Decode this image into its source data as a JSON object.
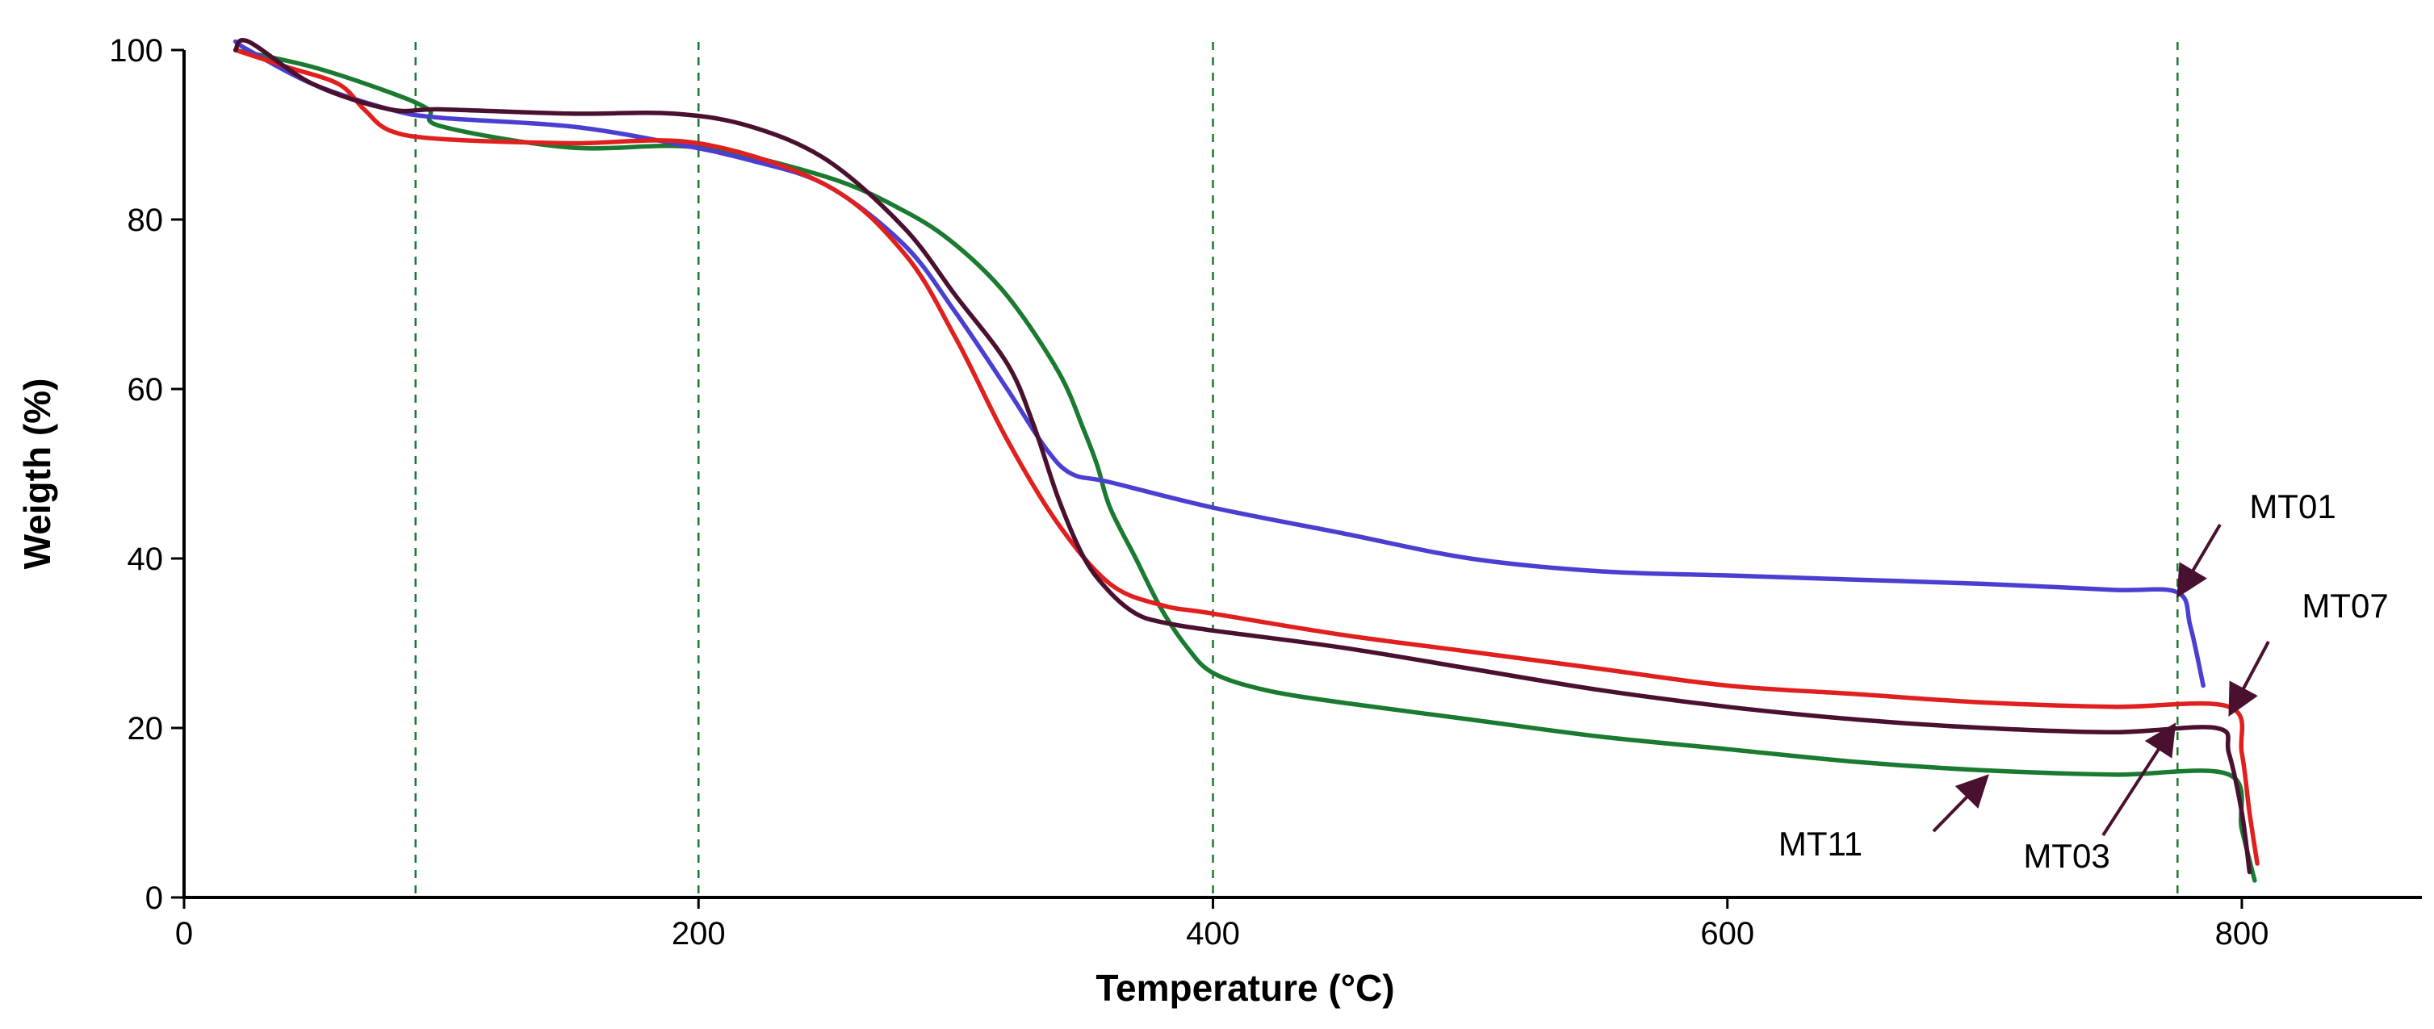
{
  "chart_data": {
    "type": "line",
    "title": "",
    "xlabel": "Temperature (°C)",
    "ylabel": "Weigth (%)",
    "xlim": [
      0,
      870
    ],
    "ylim": [
      0,
      100
    ],
    "xticks": [
      0,
      200,
      400,
      600,
      800
    ],
    "yticks": [
      0,
      20,
      40,
      60,
      80,
      100
    ],
    "grid": false,
    "reference_lines_x": [
      90,
      200,
      400,
      775
    ],
    "colors": {
      "MT01": "#4a3fd0",
      "MT07": "#e0201e",
      "MT03": "#4a1030",
      "MT11": "#1a7a30",
      "reference": "#1a7a30",
      "arrow": "#4a1030"
    },
    "series": [
      {
        "name": "MT01",
        "x": [
          20,
          25,
          50,
          80,
          100,
          150,
          190,
          220,
          250,
          280,
          300,
          320,
          335,
          345,
          360,
          400,
          450,
          500,
          550,
          600,
          650,
          700,
          750,
          775,
          780,
          785
        ],
        "y": [
          101,
          100,
          96,
          93,
          92,
          91,
          89,
          87,
          84,
          77,
          69,
          60,
          53,
          50,
          49,
          46,
          43,
          40,
          38.5,
          38,
          37.5,
          37,
          36.3,
          36,
          32,
          25
        ]
      },
      {
        "name": "MT07",
        "x": [
          20,
          40,
          60,
          70,
          80,
          100,
          150,
          200,
          250,
          280,
          300,
          320,
          340,
          360,
          380,
          400,
          450,
          500,
          550,
          600,
          650,
          700,
          750,
          795,
          800,
          803,
          806
        ],
        "y": [
          100,
          98,
          96,
          93,
          90.5,
          89.5,
          89,
          89,
          84,
          76,
          66,
          54,
          44,
          37,
          34.5,
          33.5,
          31,
          29,
          27,
          25,
          24,
          23,
          22.5,
          22.5,
          17,
          10,
          4
        ]
      },
      {
        "name": "MT03",
        "x": [
          20,
          25,
          50,
          80,
          100,
          150,
          190,
          220,
          250,
          280,
          300,
          320,
          330,
          340,
          350,
          360,
          370,
          380,
          400,
          450,
          500,
          550,
          600,
          650,
          700,
          750,
          790,
          795,
          800,
          803
        ],
        "y": [
          100,
          101,
          96,
          93,
          93,
          92.5,
          92.5,
          91,
          87,
          79,
          71,
          63,
          56,
          47,
          40,
          36,
          33.5,
          32.5,
          31.5,
          29.5,
          27,
          24.5,
          22.5,
          21,
          20,
          19.5,
          20,
          17,
          10,
          3
        ]
      },
      {
        "name": "MT11",
        "x": [
          20,
          50,
          80,
          95,
          100,
          150,
          200,
          250,
          280,
          300,
          320,
          340,
          350,
          355,
          360,
          370,
          380,
          390,
          400,
          420,
          450,
          500,
          550,
          600,
          650,
          700,
          750,
          795,
          800,
          805
        ],
        "y": [
          100,
          98,
          95,
          93,
          91,
          88.5,
          88.5,
          85,
          81,
          77,
          71,
          62,
          55,
          51,
          46,
          40,
          34,
          29.5,
          26.5,
          24.5,
          23,
          21,
          19,
          17.5,
          16,
          15,
          14.5,
          14.5,
          8,
          2
        ]
      }
    ],
    "annotations": [
      {
        "text": "MT01",
        "series": "MT01",
        "arrow_to": [
          776,
          36
        ]
      },
      {
        "text": "MT07",
        "series": "MT07",
        "arrow_to": [
          796,
          22
        ]
      },
      {
        "text": "MT03",
        "series": "MT03",
        "arrow_to": [
          773,
          20
        ]
      },
      {
        "text": "MT11",
        "series": "MT11",
        "arrow_to": [
          700,
          14
        ]
      }
    ]
  }
}
